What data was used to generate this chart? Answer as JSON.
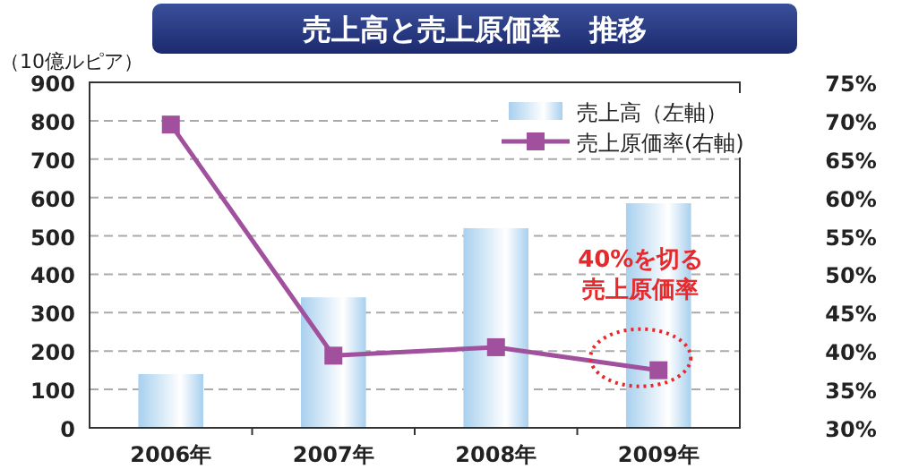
{
  "chart_data": {
    "type": "bar",
    "title": "売上高と売上原価率　推移",
    "ylabel": "（10億ルピア）",
    "categories": [
      "2006年",
      "2007年",
      "2008年",
      "2009年"
    ],
    "series": [
      {
        "name": "売上高（左軸）",
        "color": "#a8d0ee",
        "values": [
          140,
          340,
          520,
          585
        ]
      },
      {
        "name": "売上原価率(右軸)",
        "type": "line",
        "axis": "y2",
        "color": "#a0509c",
        "values": [
          69.5,
          39.4,
          40.5,
          37.5
        ]
      }
    ],
    "ylim": [
      0,
      900
    ],
    "yticks": [
      0,
      100,
      200,
      300,
      400,
      500,
      600,
      700,
      800,
      900
    ],
    "y2lim": [
      30,
      75
    ],
    "y2ticks": [
      {
        "value": 30,
        "label": "30%"
      },
      {
        "value": 35,
        "label": "35%"
      },
      {
        "value": 40,
        "label": "40%"
      },
      {
        "value": 45,
        "label": "45%"
      },
      {
        "value": 50,
        "label": "50%"
      },
      {
        "value": 55,
        "label": "55%"
      },
      {
        "value": 60,
        "label": "60%"
      },
      {
        "value": 65,
        "label": "65%"
      },
      {
        "value": 70,
        "label": "70%"
      },
      {
        "value": 75,
        "label": "75%"
      }
    ],
    "grid": "y",
    "legend": "top right",
    "marker": "square",
    "annotations": [
      "40%を切る売上原価率"
    ]
  }
}
